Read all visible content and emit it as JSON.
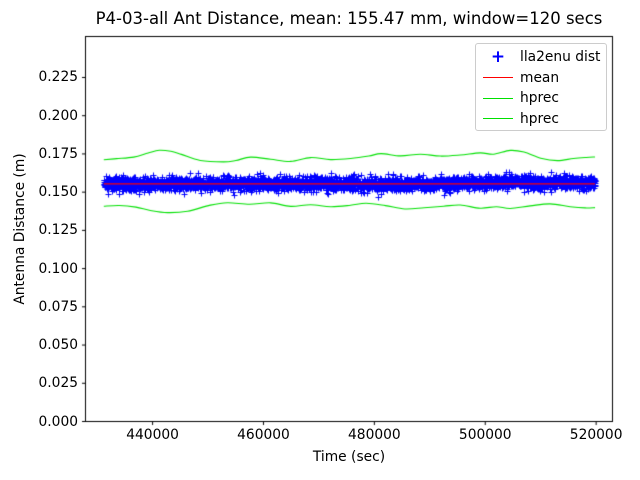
{
  "title": "P4-03-all Ant Distance, mean: 155.47 mm, window=120 secs",
  "chart_data": {
    "type": "scatter+line",
    "xlabel": "Time (sec)",
    "ylabel": "Antenna Distance (m)",
    "xlim": [
      427900,
      522950
    ],
    "ylim": [
      0,
      0.2518
    ],
    "grid": false,
    "x_ticks": [
      440000,
      460000,
      480000,
      500000,
      520000
    ],
    "x_tick_labels": [
      "440000",
      "460000",
      "480000",
      "500000",
      "520000"
    ],
    "y_ticks": [
      0.0,
      0.025,
      0.05,
      0.075,
      0.1,
      0.125,
      0.15,
      0.175,
      0.2,
      0.225
    ],
    "y_tick_labels": [
      "0.000",
      "0.025",
      "0.050",
      "0.075",
      "0.100",
      "0.125",
      "0.150",
      "0.175",
      "0.200",
      "0.225"
    ],
    "legend": {
      "position": "upper right",
      "entries": [
        {
          "label": "lla2enu dist",
          "marker": "+",
          "color": "#0000ff"
        },
        {
          "label": "mean",
          "marker": "line",
          "color": "#ff0000"
        },
        {
          "label": "hprec",
          "marker": "line",
          "color": "#00e000"
        },
        {
          "label": "hprec",
          "marker": "line",
          "color": "#00e000"
        }
      ]
    },
    "series": {
      "scatter": {
        "name": "lla2enu dist",
        "color": "#0000ff",
        "marker": "+",
        "marker_half_px": 3,
        "t_start": 431200,
        "t_end": 519800,
        "n_points": 4200,
        "mean": 0.15547,
        "noise_std": 0.00205,
        "spike_prob": 0.035,
        "spike_scale": 0.0028,
        "seed": 42,
        "center_profile": [
          [
            431200,
            0.0002
          ],
          [
            440000,
            -0.0002
          ],
          [
            450000,
            0.0004
          ],
          [
            460000,
            0.0002
          ],
          [
            470000,
            0.0004
          ],
          [
            478000,
            -0.0002
          ],
          [
            484000,
            -0.0007
          ],
          [
            490000,
            0.0001
          ],
          [
            496000,
            0.0003
          ],
          [
            502000,
            0.0008
          ],
          [
            507000,
            0.0013
          ],
          [
            512000,
            0.0006
          ],
          [
            516000,
            0.001
          ],
          [
            519800,
            0.0008
          ]
        ]
      },
      "mean": {
        "name": "mean",
        "color": "#ff0000",
        "points": [
          [
            431200,
            0.15547
          ],
          [
            519800,
            0.15547
          ]
        ]
      },
      "hprec_upper": {
        "name": "hprec",
        "color": "#00e000",
        "points": [
          [
            431200,
            0.1712
          ],
          [
            433500,
            0.1719
          ],
          [
            436600,
            0.1729
          ],
          [
            439200,
            0.1756
          ],
          [
            441200,
            0.1774
          ],
          [
            443300,
            0.1767
          ],
          [
            445200,
            0.1747
          ],
          [
            448600,
            0.1707
          ],
          [
            452800,
            0.1698
          ],
          [
            455000,
            0.1707
          ],
          [
            457700,
            0.1729
          ],
          [
            461300,
            0.1715
          ],
          [
            464900,
            0.1701
          ],
          [
            468500,
            0.1726
          ],
          [
            472100,
            0.1713
          ],
          [
            475700,
            0.172
          ],
          [
            479000,
            0.1736
          ],
          [
            481200,
            0.1752
          ],
          [
            484700,
            0.1737
          ],
          [
            488300,
            0.1748
          ],
          [
            491900,
            0.1736
          ],
          [
            495500,
            0.1743
          ],
          [
            499100,
            0.1757
          ],
          [
            501500,
            0.1748
          ],
          [
            504500,
            0.1773
          ],
          [
            507000,
            0.1762
          ],
          [
            510000,
            0.1722
          ],
          [
            513000,
            0.1706
          ],
          [
            515900,
            0.172
          ],
          [
            518200,
            0.1727
          ],
          [
            519800,
            0.173
          ]
        ]
      },
      "hprec_lower": {
        "name": "hprec",
        "color": "#00e000",
        "points": [
          [
            431200,
            0.1408
          ],
          [
            434000,
            0.1413
          ],
          [
            437000,
            0.1402
          ],
          [
            439600,
            0.138
          ],
          [
            442700,
            0.1366
          ],
          [
            446300,
            0.1375
          ],
          [
            450400,
            0.1415
          ],
          [
            453500,
            0.1431
          ],
          [
            457500,
            0.1421
          ],
          [
            461300,
            0.143
          ],
          [
            464900,
            0.1407
          ],
          [
            468500,
            0.1418
          ],
          [
            472100,
            0.1405
          ],
          [
            475700,
            0.1414
          ],
          [
            478500,
            0.1427
          ],
          [
            482000,
            0.1412
          ],
          [
            485500,
            0.139
          ],
          [
            489000,
            0.1398
          ],
          [
            492500,
            0.1408
          ],
          [
            495500,
            0.1416
          ],
          [
            499100,
            0.1395
          ],
          [
            502000,
            0.1405
          ],
          [
            504500,
            0.1393
          ],
          [
            508100,
            0.141
          ],
          [
            511700,
            0.1423
          ],
          [
            515300,
            0.1405
          ],
          [
            518000,
            0.1397
          ],
          [
            519800,
            0.1399
          ]
        ]
      }
    }
  }
}
